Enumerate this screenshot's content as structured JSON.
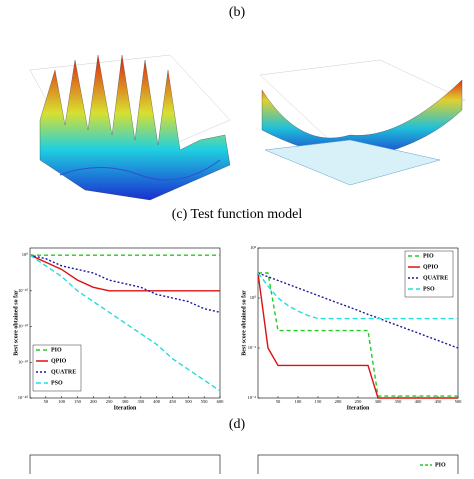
{
  "captions": {
    "b": "(b)",
    "c": "(c) Test function model",
    "d": "(d)"
  },
  "chart_data": [
    {
      "type": "line",
      "xlabel": "Iteration",
      "ylabel": "Best score obtained so far",
      "log_y": true,
      "legend": "lower left",
      "x": [
        0,
        50,
        100,
        150,
        200,
        250,
        300,
        350,
        400,
        450,
        500,
        550,
        600
      ],
      "xlim": [
        0,
        600
      ],
      "xticks": [
        50,
        100,
        150,
        200,
        250,
        300,
        350,
        400,
        450,
        500,
        550,
        600
      ],
      "ylim": [
        1e-40,
        100
      ],
      "yticks": [
        {
          "value": 1,
          "label": "10⁰"
        },
        {
          "value": 1e-10,
          "label": "10⁻¹⁰"
        },
        {
          "value": 1e-20,
          "label": "10⁻²⁰"
        },
        {
          "value": 1e-30,
          "label": "10⁻³⁰"
        },
        {
          "value": 1e-40,
          "label": "10⁻⁴⁰"
        }
      ],
      "series": [
        {
          "name": "PIO",
          "color": "#22cc22",
          "dash": "4 3",
          "values": [
            1,
            1,
            1,
            1,
            1,
            1,
            1,
            1,
            1,
            1,
            1,
            1,
            1
          ]
        },
        {
          "name": "QPIO",
          "color": "#dd1111",
          "dash": "none",
          "values": [
            1,
            0.01,
            0.0001,
            1e-07,
            1e-09,
            1e-10,
            1e-10,
            1e-10,
            1e-10,
            1e-10,
            1e-10,
            1e-10,
            1e-10
          ]
        },
        {
          "name": "QUATRE",
          "color": "#1a1aa0",
          "dash": "2 2",
          "values": [
            1,
            0.1,
            0.001,
            0.0001,
            1e-05,
            1e-07,
            1e-08,
            1e-09,
            1e-11,
            1e-12,
            1e-13,
            1e-15,
            1e-16
          ]
        },
        {
          "name": "PSO",
          "color": "#22dddd",
          "dash": "5 3",
          "values": [
            1,
            0.001,
            1e-06,
            1e-10,
            1e-13,
            1e-16,
            1e-19,
            1e-22,
            1e-25,
            1e-29,
            1e-32,
            1e-35,
            1e-38
          ]
        }
      ]
    },
    {
      "type": "line",
      "xlabel": "Iteration",
      "ylabel": "Best score obtained so far",
      "log_y": true,
      "legend": "upper right",
      "x": [
        0,
        25,
        50,
        75,
        100,
        125,
        150,
        175,
        200,
        225,
        250,
        275,
        300,
        325,
        350,
        375,
        400,
        425,
        450,
        475,
        500
      ],
      "xlim": [
        0,
        500
      ],
      "xticks": [
        50,
        100,
        150,
        200,
        250,
        300,
        350,
        400,
        450,
        500
      ],
      "ylim": [
        0.0001,
        100
      ],
      "yticks": [
        {
          "value": 100,
          "label": "10²"
        },
        {
          "value": 1,
          "label": "10⁰"
        },
        {
          "value": 0.01,
          "label": "10⁻²"
        },
        {
          "value": 0.0001,
          "label": "10⁻⁴"
        }
      ],
      "series": [
        {
          "name": "PIO",
          "color": "#22cc22",
          "dash": "4 3",
          "values": [
            10,
            10,
            0.05,
            0.05,
            0.05,
            0.05,
            0.05,
            0.05,
            0.05,
            0.05,
            0.05,
            0.05,
            0.00012,
            0.00012,
            0.00012,
            0.00012,
            0.00012,
            0.00012,
            0.00012,
            0.00012,
            0.00012
          ]
        },
        {
          "name": "QPIO",
          "color": "#dd1111",
          "dash": "none",
          "values": [
            10,
            0.01,
            0.002,
            0.002,
            0.002,
            0.002,
            0.002,
            0.002,
            0.002,
            0.002,
            0.002,
            0.002,
            0.0001,
            0.0001,
            0.0001,
            0.0001,
            0.0001,
            0.0001,
            0.0001,
            0.0001,
            0.0001
          ]
        },
        {
          "name": "QUATRE",
          "color": "#1a1aa0",
          "dash": "2 2",
          "values": [
            10,
            7.08,
            5.01,
            3.55,
            2.51,
            1.78,
            1.26,
            0.89,
            0.63,
            0.45,
            0.32,
            0.22,
            0.16,
            0.11,
            0.079,
            0.056,
            0.04,
            0.028,
            0.02,
            0.014,
            0.01
          ]
        },
        {
          "name": "PSO",
          "color": "#22dddd",
          "dash": "5 3",
          "values": [
            10,
            3,
            1,
            0.5,
            0.3,
            0.2,
            0.15,
            0.15,
            0.15,
            0.15,
            0.15,
            0.15,
            0.15,
            0.15,
            0.15,
            0.15,
            0.15,
            0.15,
            0.15,
            0.15,
            0.15
          ]
        }
      ]
    }
  ],
  "bottom_legend": "PIO"
}
